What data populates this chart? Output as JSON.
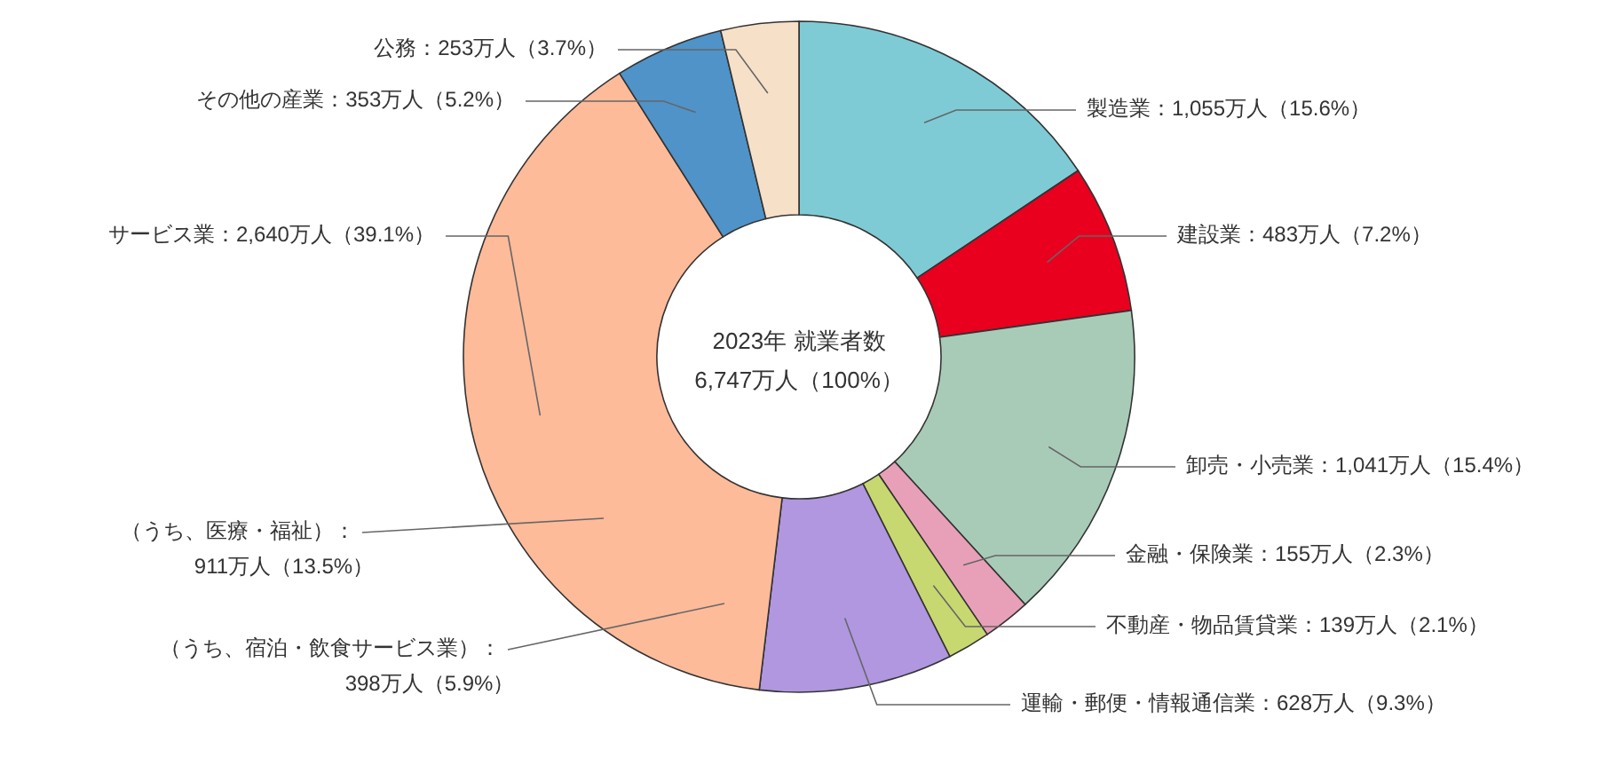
{
  "chart_data": {
    "type": "donut",
    "title": "2023年 就業者数",
    "subtitle": "6,747万人（100%）",
    "categories": [
      "製造業：1,055万人（15.6%）",
      "建設業：483万人（7.2%）",
      "卸売・小売業：1,041万人（15.4%）",
      "金融・保険業：155万人（2.3%）",
      "不動産・物品賃貸業：139万人（2.1%）",
      "運輸・郵便・情報通信業：628万人（9.3%）",
      "サービス業：2,640万人（39.1%）",
      "その他の産業：353万人（5.2%）",
      "公務：253万人（3.7%）"
    ],
    "values": [
      1055,
      483,
      1041,
      155,
      139,
      628,
      2640,
      353,
      253
    ],
    "colors": [
      "#7ecbd6",
      "#e8001e",
      "#a8cbb8",
      "#e8a0b8",
      "#c8d870",
      "#b097e0",
      "#fdbb9a",
      "#4f93c8",
      "#f7e0c8"
    ],
    "annotations": [
      "（うち、宿泊・飲食サービス業）：\n398万人（5.9%）",
      "（うち、医療・福祉）：\n911万人（13.5%）"
    ]
  }
}
